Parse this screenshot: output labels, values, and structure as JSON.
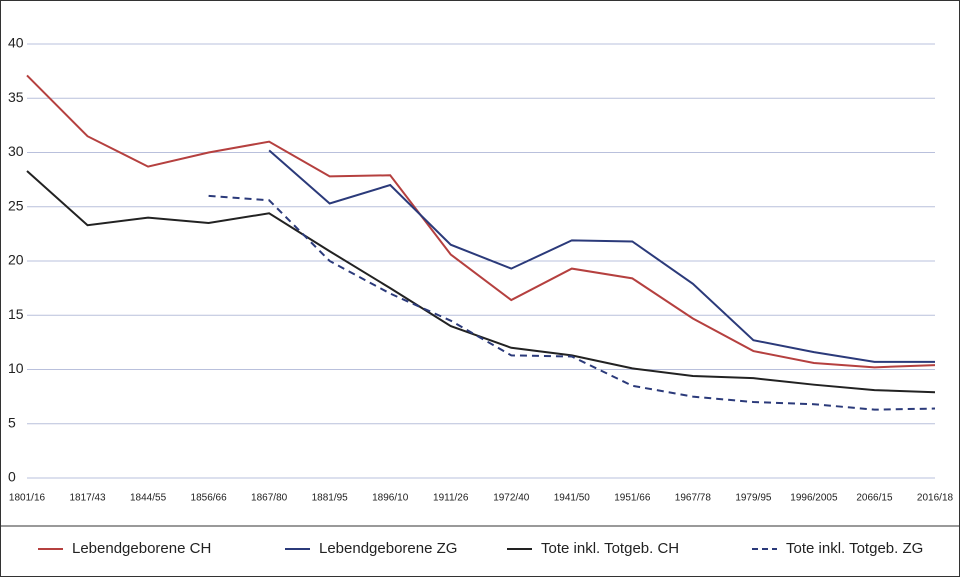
{
  "chart_data": {
    "type": "line",
    "categories": [
      "1801/16",
      "1817/43",
      "1844/55",
      "1856/66",
      "1867/80",
      "1881/95",
      "1896/10",
      "1911/26",
      "1972/40",
      "1941/50",
      "1951/66",
      "1967/78",
      "1979/95",
      "1996/2005",
      "2066/15",
      "2016/18"
    ],
    "series": [
      {
        "name": "Lebendgeborene CH",
        "color": "#b5403f",
        "dash": false,
        "values": [
          37.1,
          31.5,
          28.7,
          30.0,
          31.0,
          27.8,
          27.9,
          20.6,
          16.4,
          19.3,
          18.4,
          14.7,
          11.7,
          10.6,
          10.2,
          10.4
        ]
      },
      {
        "name": "Lebendgeborene ZG",
        "color": "#2b3a7a",
        "dash": false,
        "values": [
          null,
          null,
          null,
          null,
          30.2,
          25.3,
          27.0,
          21.5,
          19.3,
          21.9,
          21.8,
          17.9,
          12.7,
          11.6,
          10.7,
          10.7
        ]
      },
      {
        "name": "Tote inkl. Totgeb. CH",
        "color": "#222222",
        "dash": false,
        "values": [
          28.3,
          23.3,
          24.0,
          23.5,
          24.4,
          20.9,
          17.5,
          14.0,
          12.0,
          11.3,
          10.1,
          9.4,
          9.2,
          8.6,
          8.1,
          7.9
        ]
      },
      {
        "name": "Tote inkl. Totgeb. ZG",
        "color": "#2b3a7a",
        "dash": true,
        "values": [
          null,
          null,
          null,
          26.0,
          25.6,
          20.0,
          17.0,
          14.5,
          11.3,
          11.2,
          8.5,
          7.5,
          7.0,
          6.8,
          6.3,
          6.4
        ]
      }
    ],
    "ylim": [
      0,
      40
    ],
    "yticks": [
      0,
      5,
      10,
      15,
      20,
      25,
      30,
      35,
      40
    ],
    "grid": true,
    "legend": "bottom"
  }
}
